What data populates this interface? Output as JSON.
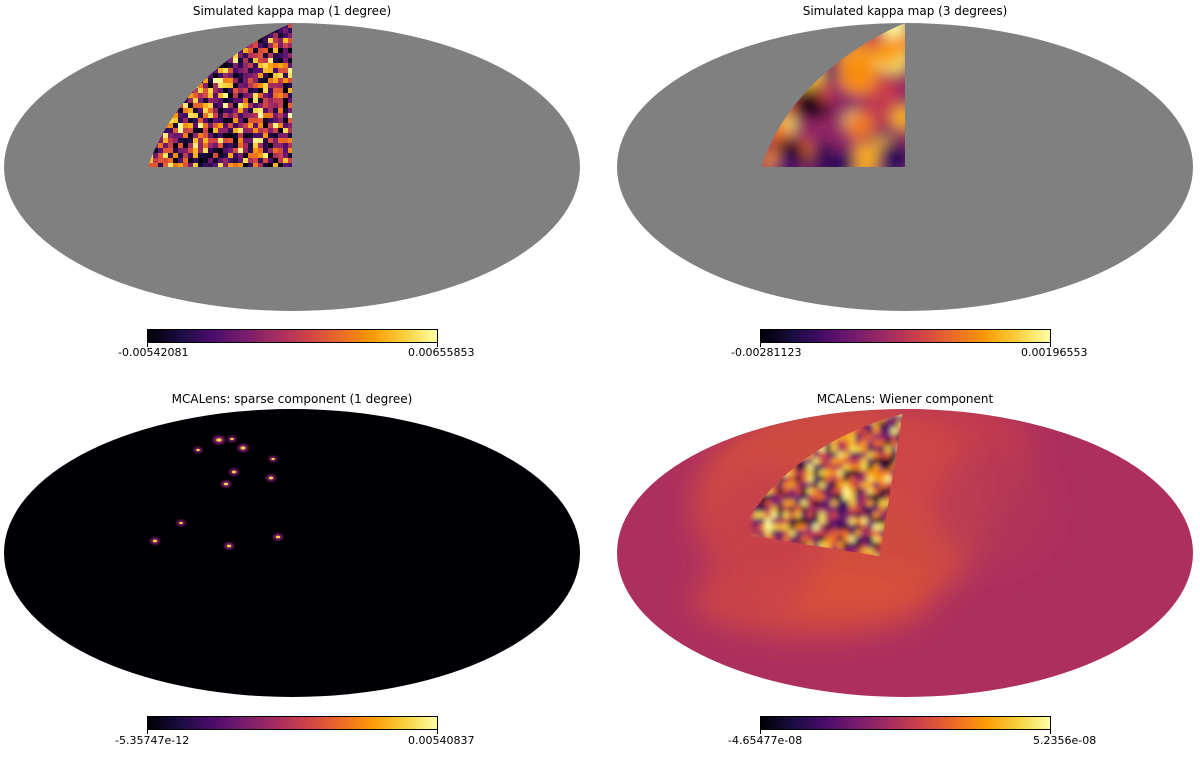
{
  "chart_data": [
    {
      "type": "heatmap",
      "projection": "mollweide",
      "title": "Simulated kappa map (1 degree)",
      "colormap": "inferno",
      "colorbar": {
        "min": -0.00542081,
        "max": 0.00655853,
        "min_label": "-0.00542081",
        "max_label": "0.00655853"
      },
      "mask_color": "#808080",
      "observed_region": "upper-left quadrant patch",
      "smoothing": "fine"
    },
    {
      "type": "heatmap",
      "projection": "mollweide",
      "title": "Simulated kappa map (3 degrees)",
      "colormap": "inferno",
      "colorbar": {
        "min": -0.00281123,
        "max": 0.00196553,
        "min_label": "-0.00281123",
        "max_label": "0.00196553"
      },
      "mask_color": "#808080",
      "observed_region": "upper-left quadrant patch",
      "smoothing": "coarse"
    },
    {
      "type": "heatmap",
      "projection": "mollweide",
      "title": "MCALens: sparse component (1 degree)",
      "colormap": "inferno",
      "colorbar": {
        "min": -5.35747e-12,
        "max": 0.00540837,
        "min_label": "-5.35747e-12",
        "max_label": "0.00540837"
      },
      "background": "near-zero (black)",
      "peaks": "isolated compact sources"
    },
    {
      "type": "heatmap",
      "projection": "mollweide",
      "title": "MCALens: Wiener component",
      "colormap": "inferno",
      "colorbar": {
        "min": -4.65477e-08,
        "max": 5.2356e-08,
        "min_label": "-4.65477e-08",
        "max_label": "5.2356e-08"
      },
      "background": "mid-level magenta with fluctuating patch"
    }
  ],
  "colors": {
    "mask_gray": "#808080",
    "inferno_stops": [
      "#000004",
      "#1b0c41",
      "#4a0c6b",
      "#781c6d",
      "#a52c60",
      "#cf4446",
      "#ed6925",
      "#fb9b06",
      "#f7d13d",
      "#fcffa4"
    ]
  }
}
